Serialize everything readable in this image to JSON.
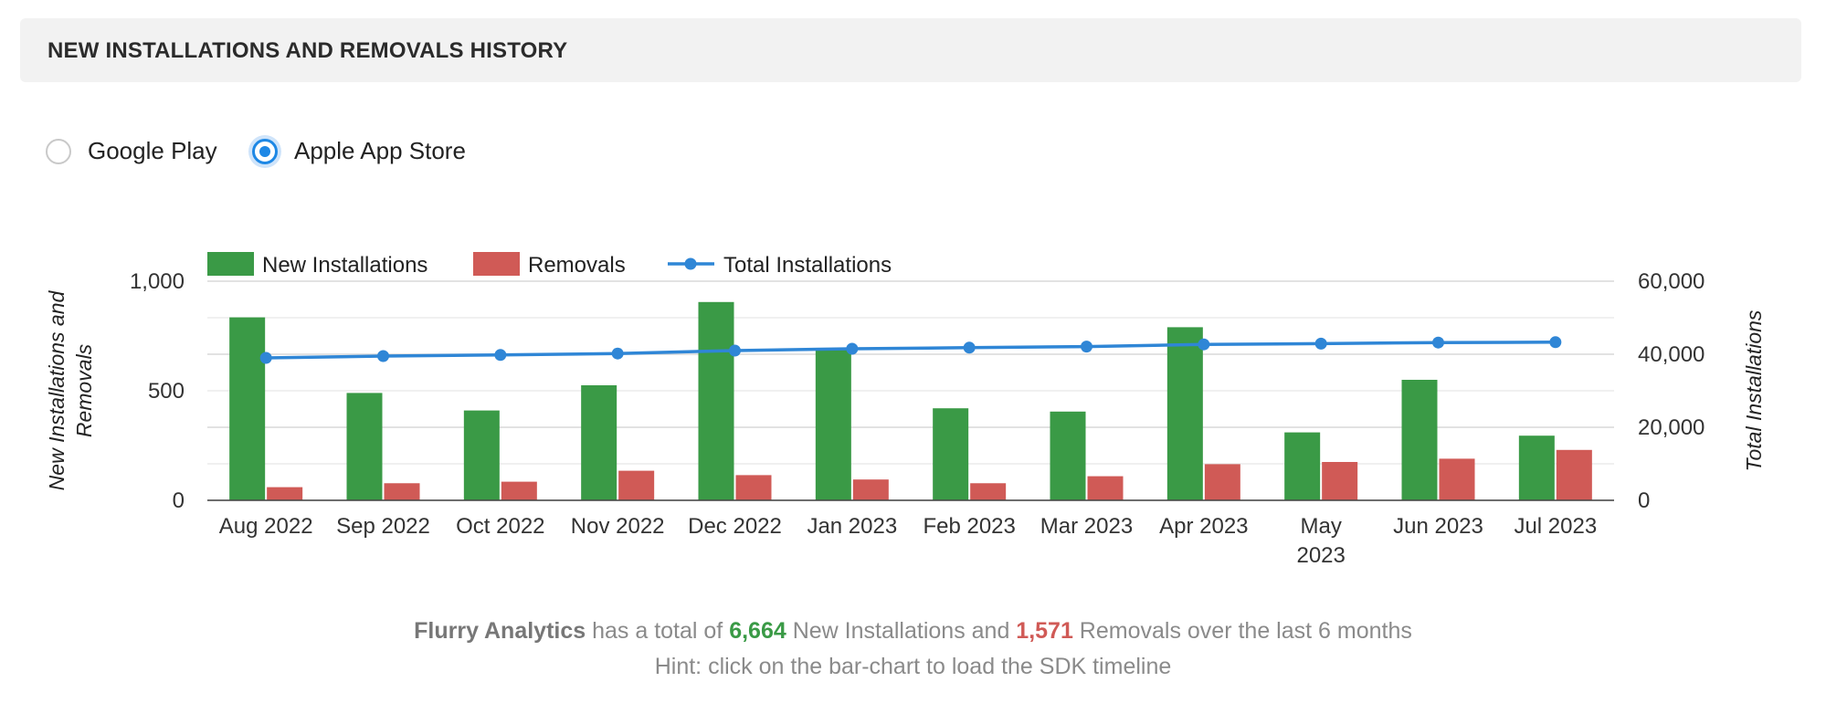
{
  "header": {
    "title": "NEW INSTALLATIONS AND REMOVALS HISTORY"
  },
  "store_options": [
    {
      "label": "Google Play",
      "selected": false
    },
    {
      "label": "Apple App Store",
      "selected": true
    }
  ],
  "colors": {
    "new": "#3a9a46",
    "removals": "#d05a56",
    "total": "#2f86d6"
  },
  "chart_data": {
    "type": "bar",
    "categories": [
      "Aug 2022",
      "Sep 2022",
      "Oct 2022",
      "Nov 2022",
      "Dec 2022",
      "Jan 2023",
      "Feb 2023",
      "Mar 2023",
      "Apr 2023",
      "May 2023",
      "Jun 2023",
      "Jul 2023"
    ],
    "series": [
      {
        "name": "New Installations",
        "type": "bar",
        "axis": "left",
        "values": [
          835,
          490,
          410,
          525,
          905,
          690,
          420,
          405,
          790,
          310,
          550,
          295
        ]
      },
      {
        "name": "Removals",
        "type": "bar",
        "axis": "left",
        "values": [
          60,
          78,
          85,
          135,
          115,
          95,
          78,
          110,
          165,
          175,
          190,
          230
        ]
      },
      {
        "name": "Total Installations",
        "type": "line",
        "axis": "right",
        "values": [
          39000,
          39500,
          39800,
          40200,
          41000,
          41500,
          41800,
          42100,
          42700,
          42900,
          43200,
          43300
        ]
      }
    ],
    "y_left": {
      "label": "New Installations and Removals",
      "range": [
        0,
        1000
      ],
      "ticks": [
        "0",
        "500",
        "1,000"
      ],
      "tick_values": [
        0,
        500,
        1000
      ]
    },
    "y_right": {
      "label": "Total Installations",
      "range": [
        0,
        60000
      ],
      "ticks": [
        "0",
        "20,000",
        "40,000",
        "60,000"
      ],
      "tick_values": [
        0,
        20000,
        40000,
        60000
      ]
    },
    "grid": true,
    "legend_position": "top-left"
  },
  "summary": {
    "company": "Flurry Analytics",
    "text1": " has a total of ",
    "new_count": "6,664",
    "text2": " New Installations and ",
    "removal_count": "1,571",
    "text3": " Removals over the last 6 months"
  },
  "hint": "Hint: click on the bar-chart to load the SDK timeline"
}
